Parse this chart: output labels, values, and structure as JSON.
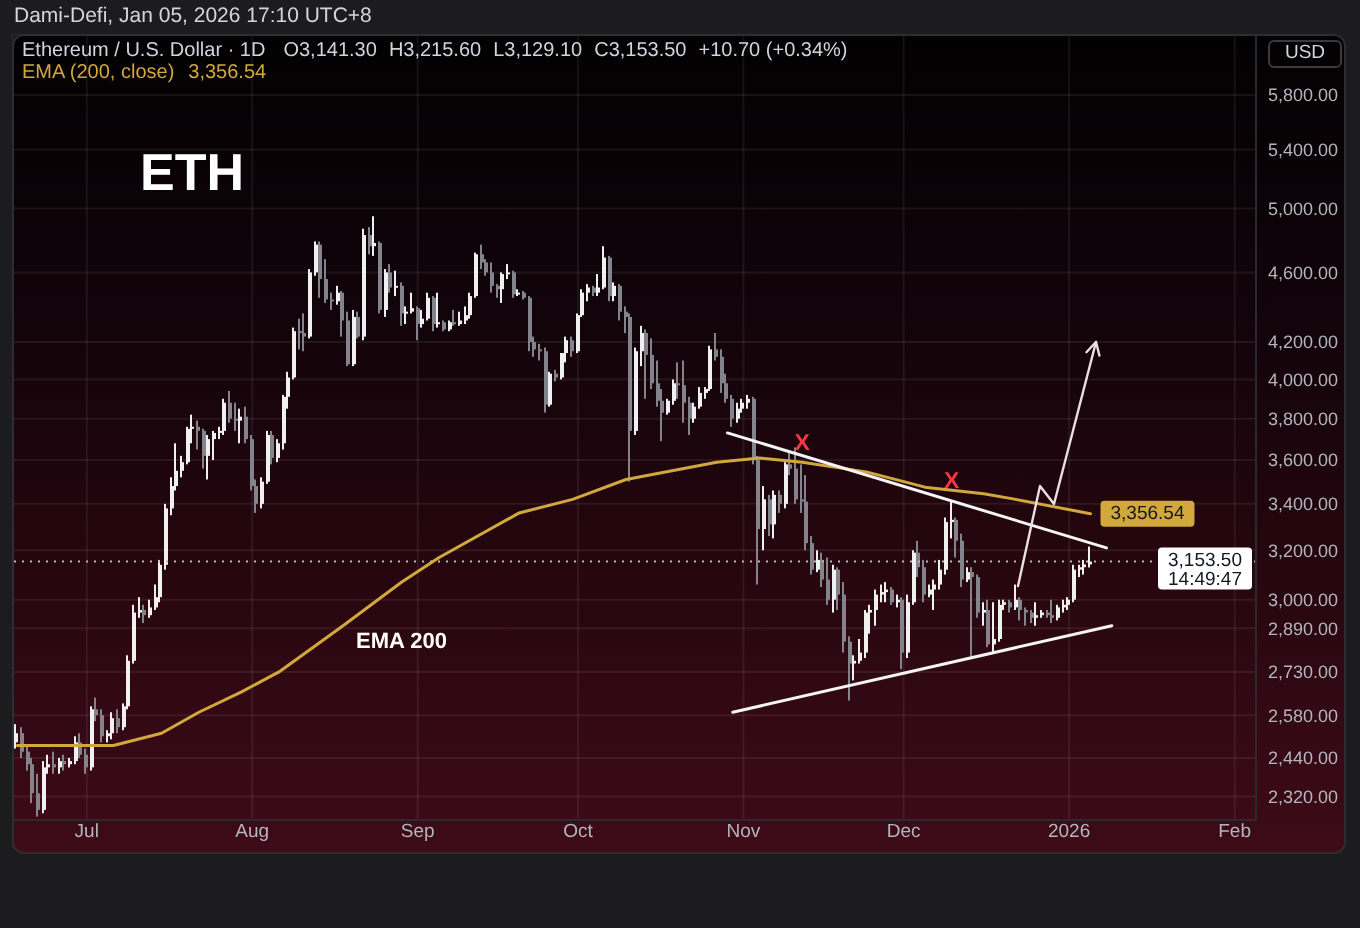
{
  "chart_data": {
    "type": "candlestick",
    "title": "ETH",
    "subtitle": "Ethereum / U.S. Dollar · 1D",
    "ylabel": "USD",
    "annotations": [
      "Dami-Defi, Jan 05, 2026 17:10 UTC+8",
      "O3,141.30",
      "H3,215.60",
      "L3,129.10",
      "C3,153.50",
      "+10.70 (+0.34%)",
      {
        "text": "X",
        "x": "2025-11-12",
        "y": 3580
      },
      {
        "text": "X",
        "x": "2025-12-10",
        "y": 3410
      },
      "EMA 200",
      "14:49:47"
    ],
    "x": [
      "2025-06-18",
      "2025-06-19",
      "2025-06-20",
      "2025-06-21",
      "2025-06-22",
      "2025-06-23",
      "2025-06-24",
      "2025-06-25",
      "2025-06-26",
      "2025-06-27",
      "2025-06-28",
      "2025-06-29",
      "2025-06-30",
      "2025-07-01",
      "2025-07-02",
      "2025-07-03",
      "2025-07-04",
      "2025-07-05",
      "2025-07-06",
      "2025-07-07",
      "2025-07-08",
      "2025-07-09",
      "2025-07-10",
      "2025-07-11",
      "2025-07-12",
      "2025-07-13",
      "2025-07-14",
      "2025-07-15",
      "2025-07-16",
      "2025-07-17",
      "2025-07-18",
      "2025-07-19",
      "2025-07-20",
      "2025-07-21",
      "2025-07-22",
      "2025-07-23",
      "2025-07-24",
      "2025-07-25",
      "2025-07-26",
      "2025-07-27",
      "2025-07-28",
      "2025-07-29",
      "2025-07-30",
      "2025-07-31",
      "2025-08-01",
      "2025-08-02",
      "2025-08-03",
      "2025-08-04",
      "2025-08-05",
      "2025-08-06",
      "2025-08-07",
      "2025-08-08",
      "2025-08-09",
      "2025-08-10",
      "2025-08-11",
      "2025-08-12",
      "2025-08-13",
      "2025-08-14",
      "2025-08-15",
      "2025-08-16",
      "2025-08-17",
      "2025-08-18",
      "2025-08-19",
      "2025-08-20",
      "2025-08-21",
      "2025-08-22",
      "2025-08-23",
      "2025-08-24",
      "2025-08-25",
      "2025-08-26",
      "2025-08-27",
      "2025-08-28",
      "2025-08-29",
      "2025-08-30",
      "2025-08-31",
      "2025-09-01",
      "2025-09-02",
      "2025-09-03",
      "2025-09-04",
      "2025-09-05",
      "2025-09-06",
      "2025-09-07",
      "2025-09-08",
      "2025-09-09",
      "2025-09-10",
      "2025-09-11",
      "2025-09-12",
      "2025-09-13",
      "2025-09-14",
      "2025-09-15",
      "2025-09-16",
      "2025-09-17",
      "2025-09-18",
      "2025-09-19",
      "2025-09-20",
      "2025-09-21",
      "2025-09-22",
      "2025-09-23",
      "2025-09-24",
      "2025-09-25",
      "2025-09-26",
      "2025-09-27",
      "2025-09-28",
      "2025-09-29",
      "2025-09-30",
      "2025-10-01",
      "2025-10-02",
      "2025-10-03",
      "2025-10-04",
      "2025-10-05",
      "2025-10-06",
      "2025-10-07",
      "2025-10-08",
      "2025-10-09",
      "2025-10-10",
      "2025-10-11",
      "2025-10-12",
      "2025-10-13",
      "2025-10-14",
      "2025-10-15",
      "2025-10-16",
      "2025-10-17",
      "2025-10-18",
      "2025-10-19",
      "2025-10-20",
      "2025-10-21",
      "2025-10-22",
      "2025-10-23",
      "2025-10-24",
      "2025-10-25",
      "2025-10-26",
      "2025-10-27",
      "2025-10-28",
      "2025-10-29",
      "2025-10-30",
      "2025-10-31",
      "2025-11-01",
      "2025-11-02",
      "2025-11-03",
      "2025-11-04",
      "2025-11-05",
      "2025-11-06",
      "2025-11-07",
      "2025-11-08",
      "2025-11-09",
      "2025-11-10",
      "2025-11-11",
      "2025-11-12",
      "2025-11-13",
      "2025-11-14",
      "2025-11-15",
      "2025-11-16",
      "2025-11-17",
      "2025-11-18",
      "2025-11-19",
      "2025-11-20",
      "2025-11-21",
      "2025-11-22",
      "2025-11-23",
      "2025-11-24",
      "2025-11-25",
      "2025-11-26",
      "2025-11-27",
      "2025-11-28",
      "2025-11-29",
      "2025-11-30",
      "2025-12-01",
      "2025-12-02",
      "2025-12-03",
      "2025-12-04",
      "2025-12-05",
      "2025-12-06",
      "2025-12-07",
      "2025-12-08",
      "2025-12-09",
      "2025-12-10",
      "2025-12-11",
      "2025-12-12",
      "2025-12-13",
      "2025-12-14",
      "2025-12-15",
      "2025-12-16",
      "2025-12-17",
      "2025-12-18",
      "2025-12-19",
      "2025-12-20",
      "2025-12-21",
      "2025-12-22",
      "2025-12-23",
      "2025-12-24",
      "2025-12-25",
      "2025-12-26",
      "2025-12-27",
      "2025-12-28",
      "2025-12-29",
      "2025-12-30",
      "2025-12-31",
      "2026-01-01",
      "2026-01-02",
      "2026-01-03",
      "2026-01-04",
      "2026-01-05"
    ],
    "ohlc": [
      [
        2490,
        2550,
        2470,
        2520
      ],
      [
        2520,
        2540,
        2440,
        2460
      ],
      [
        2460,
        2480,
        2400,
        2420
      ],
      [
        2420,
        2440,
        2300,
        2330
      ],
      [
        2330,
        2390,
        2260,
        2280
      ],
      [
        2280,
        2430,
        2270,
        2410
      ],
      [
        2410,
        2450,
        2390,
        2420
      ],
      [
        2420,
        2460,
        2390,
        2410
      ],
      [
        2410,
        2440,
        2390,
        2430
      ],
      [
        2430,
        2450,
        2400,
        2420
      ],
      [
        2420,
        2440,
        2410,
        2430
      ],
      [
        2430,
        2510,
        2420,
        2490
      ],
      [
        2490,
        2520,
        2440,
        2450
      ],
      [
        2450,
        2470,
        2390,
        2410
      ],
      [
        2410,
        2610,
        2400,
        2600
      ],
      [
        2600,
        2640,
        2560,
        2580
      ],
      [
        2580,
        2600,
        2490,
        2510
      ],
      [
        2510,
        2530,
        2490,
        2520
      ],
      [
        2520,
        2590,
        2500,
        2570
      ],
      [
        2570,
        2600,
        2520,
        2540
      ],
      [
        2540,
        2620,
        2530,
        2610
      ],
      [
        2610,
        2790,
        2600,
        2770
      ],
      [
        2770,
        2980,
        2760,
        2950
      ],
      [
        2950,
        3010,
        2930,
        2960
      ],
      [
        2960,
        2980,
        2910,
        2940
      ],
      [
        2940,
        3000,
        2930,
        2970
      ],
      [
        2970,
        3060,
        2960,
        3010
      ],
      [
        3010,
        3160,
        2990,
        3140
      ],
      [
        3140,
        3400,
        3120,
        3380
      ],
      [
        3380,
        3520,
        3350,
        3480
      ],
      [
        3480,
        3680,
        3460,
        3550
      ],
      [
        3550,
        3620,
        3520,
        3590
      ],
      [
        3590,
        3760,
        3580,
        3750
      ],
      [
        3750,
        3820,
        3680,
        3760
      ],
      [
        3760,
        3790,
        3650,
        3740
      ],
      [
        3740,
        3750,
        3560,
        3620
      ],
      [
        3620,
        3720,
        3510,
        3700
      ],
      [
        3700,
        3740,
        3600,
        3730
      ],
      [
        3730,
        3760,
        3700,
        3740
      ],
      [
        3740,
        3900,
        3720,
        3880
      ],
      [
        3880,
        3940,
        3780,
        3800
      ],
      [
        3800,
        3880,
        3740,
        3790
      ],
      [
        3790,
        3850,
        3680,
        3810
      ],
      [
        3810,
        3860,
        3680,
        3700
      ],
      [
        3700,
        3720,
        3460,
        3480
      ],
      [
        3480,
        3510,
        3360,
        3400
      ],
      [
        3400,
        3520,
        3380,
        3500
      ],
      [
        3500,
        3740,
        3490,
        3720
      ],
      [
        3720,
        3740,
        3580,
        3610
      ],
      [
        3610,
        3700,
        3590,
        3680
      ],
      [
        3680,
        3920,
        3650,
        3910
      ],
      [
        3910,
        4040,
        3850,
        4010
      ],
      [
        4010,
        4280,
        4000,
        4260
      ],
      [
        4260,
        4330,
        4160,
        4250
      ],
      [
        4250,
        4360,
        4150,
        4230
      ],
      [
        4230,
        4620,
        4220,
        4600
      ],
      [
        4600,
        4790,
        4580,
        4770
      ],
      [
        4770,
        4790,
        4450,
        4560
      ],
      [
        4560,
        4680,
        4420,
        4440
      ],
      [
        4440,
        4480,
        4380,
        4430
      ],
      [
        4430,
        4520,
        4410,
        4480
      ],
      [
        4480,
        4490,
        4230,
        4320
      ],
      [
        4320,
        4370,
        4070,
        4080
      ],
      [
        4080,
        4380,
        4070,
        4340
      ],
      [
        4340,
        4370,
        4220,
        4230
      ],
      [
        4230,
        4870,
        4210,
        4830
      ],
      [
        4830,
        4880,
        4710,
        4760
      ],
      [
        4760,
        4950,
        4700,
        4780
      ],
      [
        4780,
        4790,
        4360,
        4380
      ],
      [
        4380,
        4620,
        4340,
        4600
      ],
      [
        4600,
        4650,
        4480,
        4510
      ],
      [
        4510,
        4610,
        4460,
        4520
      ],
      [
        4520,
        4540,
        4290,
        4360
      ],
      [
        4360,
        4400,
        4300,
        4370
      ],
      [
        4370,
        4480,
        4360,
        4390
      ],
      [
        4390,
        4400,
        4210,
        4300
      ],
      [
        4300,
        4380,
        4280,
        4330
      ],
      [
        4330,
        4480,
        4320,
        4450
      ],
      [
        4450,
        4460,
        4260,
        4300
      ],
      [
        4300,
        4480,
        4280,
        4310
      ],
      [
        4310,
        4320,
        4260,
        4270
      ],
      [
        4270,
        4320,
        4260,
        4310
      ],
      [
        4310,
        4380,
        4290,
        4300
      ],
      [
        4300,
        4370,
        4290,
        4320
      ],
      [
        4320,
        4400,
        4300,
        4350
      ],
      [
        4350,
        4480,
        4330,
        4460
      ],
      [
        4460,
        4720,
        4450,
        4710
      ],
      [
        4710,
        4770,
        4620,
        4660
      ],
      [
        4660,
        4680,
        4580,
        4600
      ],
      [
        4600,
        4660,
        4480,
        4520
      ],
      [
        4520,
        4530,
        4450,
        4500
      ],
      [
        4500,
        4600,
        4420,
        4590
      ],
      [
        4590,
        4650,
        4560,
        4600
      ],
      [
        4600,
        4610,
        4450,
        4470
      ],
      [
        4470,
        4500,
        4460,
        4480
      ],
      [
        4480,
        4490,
        4440,
        4450
      ],
      [
        4450,
        4460,
        4150,
        4200
      ],
      [
        4200,
        4230,
        4120,
        4160
      ],
      [
        4160,
        4190,
        4100,
        4150
      ],
      [
        4150,
        4170,
        3830,
        3870
      ],
      [
        3870,
        4040,
        3860,
        4030
      ],
      [
        4030,
        4050,
        3990,
        4010
      ],
      [
        4010,
        4140,
        4000,
        4140
      ],
      [
        4140,
        4230,
        4090,
        4210
      ],
      [
        4210,
        4230,
        4120,
        4150
      ],
      [
        4150,
        4360,
        4140,
        4350
      ],
      [
        4350,
        4500,
        4340,
        4480
      ],
      [
        4480,
        4530,
        4430,
        4510
      ],
      [
        4510,
        4520,
        4460,
        4480
      ],
      [
        4480,
        4590,
        4460,
        4510
      ],
      [
        4510,
        4760,
        4500,
        4690
      ],
      [
        4690,
        4700,
        4430,
        4460
      ],
      [
        4460,
        4540,
        4430,
        4520
      ],
      [
        4520,
        4530,
        4320,
        4370
      ],
      [
        4370,
        4400,
        4250,
        4340
      ],
      [
        4340,
        4360,
        3500,
        3740
      ],
      [
        3740,
        4170,
        3720,
        4150
      ],
      [
        4150,
        4290,
        4070,
        4250
      ],
      [
        4250,
        4270,
        3900,
        4130
      ],
      [
        4130,
        4220,
        3950,
        3980
      ],
      [
        3980,
        4100,
        3860,
        3890
      ],
      [
        3890,
        3950,
        3690,
        3830
      ],
      [
        3830,
        3900,
        3820,
        3890
      ],
      [
        3890,
        4000,
        3870,
        3980
      ],
      [
        3980,
        4090,
        3900,
        3970
      ],
      [
        3970,
        4100,
        3780,
        3880
      ],
      [
        3880,
        3910,
        3720,
        3800
      ],
      [
        3800,
        3880,
        3780,
        3860
      ],
      [
        3860,
        3960,
        3850,
        3930
      ],
      [
        3930,
        3960,
        3900,
        3950
      ],
      [
        3950,
        4180,
        3940,
        4160
      ],
      [
        4160,
        4250,
        4100,
        4120
      ],
      [
        4120,
        4160,
        3930,
        3980
      ],
      [
        3980,
        4030,
        3880,
        3900
      ],
      [
        3900,
        3920,
        3760,
        3800
      ],
      [
        3800,
        3880,
        3780,
        3850
      ],
      [
        3850,
        3900,
        3830,
        3880
      ],
      [
        3880,
        3920,
        3850,
        3900
      ],
      [
        3900,
        3910,
        3580,
        3600
      ],
      [
        3600,
        3620,
        3060,
        3290
      ],
      [
        3290,
        3480,
        3200,
        3420
      ],
      [
        3420,
        3440,
        3260,
        3310
      ],
      [
        3310,
        3460,
        3250,
        3440
      ],
      [
        3440,
        3460,
        3360,
        3400
      ],
      [
        3400,
        3590,
        3380,
        3580
      ],
      [
        3580,
        3640,
        3530,
        3560
      ],
      [
        3560,
        3660,
        3400,
        3420
      ],
      [
        3420,
        3580,
        3360,
        3410
      ],
      [
        3410,
        3530,
        3200,
        3230
      ],
      [
        3230,
        3260,
        3100,
        3120
      ],
      [
        3120,
        3200,
        3110,
        3160
      ],
      [
        3160,
        3190,
        3050,
        3080
      ],
      [
        3080,
        3170,
        2980,
        3000
      ],
      [
        3000,
        3140,
        2950,
        3120
      ],
      [
        3120,
        3130,
        2960,
        3020
      ],
      [
        3020,
        3070,
        2800,
        2840
      ],
      [
        2840,
        2860,
        2630,
        2760
      ],
      [
        2760,
        2790,
        2700,
        2770
      ],
      [
        2770,
        2850,
        2760,
        2800
      ],
      [
        2800,
        2960,
        2780,
        2950
      ],
      [
        2950,
        2980,
        2870,
        2960
      ],
      [
        2960,
        3040,
        2900,
        3020
      ],
      [
        3020,
        3060,
        2990,
        3030
      ],
      [
        3030,
        3070,
        2990,
        3040
      ],
      [
        3040,
        3050,
        2980,
        2990
      ],
      [
        2990,
        3020,
        2970,
        3000
      ],
      [
        3000,
        3010,
        2740,
        2800
      ],
      [
        2800,
        3020,
        2780,
        2990
      ],
      [
        2990,
        3200,
        2980,
        3190
      ],
      [
        3190,
        3240,
        3090,
        3130
      ],
      [
        3130,
        3160,
        2990,
        3020
      ],
      [
        3020,
        3060,
        3010,
        3040
      ],
      [
        3040,
        3080,
        2960,
        3060
      ],
      [
        3060,
        3160,
        3040,
        3120
      ],
      [
        3120,
        3340,
        3100,
        3320
      ],
      [
        3320,
        3410,
        3250,
        3330
      ],
      [
        3330,
        3340,
        3170,
        3240
      ],
      [
        3240,
        3270,
        3050,
        3080
      ],
      [
        3080,
        3130,
        3070,
        3110
      ],
      [
        3110,
        3130,
        2780,
        3090
      ],
      [
        3090,
        3100,
        2930,
        2950
      ],
      [
        2950,
        2990,
        2900,
        2960
      ],
      [
        2960,
        3000,
        2820,
        2830
      ],
      [
        2830,
        2990,
        2800,
        2850
      ],
      [
        2850,
        3000,
        2840,
        2980
      ],
      [
        2980,
        3000,
        2960,
        2990
      ],
      [
        2990,
        3000,
        2950,
        2970
      ],
      [
        2970,
        3060,
        2960,
        3000
      ],
      [
        3000,
        3010,
        2920,
        2960
      ],
      [
        2960,
        2970,
        2900,
        2950
      ],
      [
        2950,
        2960,
        2910,
        2930
      ],
      [
        2930,
        2990,
        2900,
        2940
      ],
      [
        2940,
        2960,
        2930,
        2950
      ],
      [
        2950,
        2960,
        2930,
        2940
      ],
      [
        2940,
        3000,
        2910,
        2930
      ],
      [
        2930,
        2980,
        2920,
        2970
      ],
      [
        2970,
        3000,
        2950,
        2980
      ],
      [
        2980,
        3010,
        2960,
        3000
      ],
      [
        3000,
        3140,
        2990,
        3120
      ],
      [
        3120,
        3140,
        3090,
        3130
      ],
      [
        3130,
        3160,
        3100,
        3141.3
      ],
      [
        3141.3,
        3215.6,
        3129.1,
        3153.5
      ]
    ],
    "colors": [
      "#f0f0f0",
      "#83838b",
      "#83838b",
      "#83838b",
      "#83838b",
      "#f0f0f0",
      "#f0f0f0",
      "#83838b",
      "#f0f0f0",
      "#83838b",
      "#f0f0f0",
      "#f0f0f0",
      "#83838b",
      "#83838b",
      "#f0f0f0",
      "#83838b",
      "#83838b",
      "#f0f0f0",
      "#f0f0f0",
      "#83838b",
      "#f0f0f0",
      "#f0f0f0",
      "#f0f0f0",
      "#f0f0f0",
      "#83838b",
      "#f0f0f0",
      "#f0f0f0",
      "#f0f0f0",
      "#f0f0f0",
      "#f0f0f0",
      "#f0f0f0",
      "#f0f0f0",
      "#f0f0f0",
      "#f0f0f0",
      "#83838b",
      "#83838b",
      "#f0f0f0",
      "#f0f0f0",
      "#f0f0f0",
      "#f0f0f0",
      "#83838b",
      "#83838b",
      "#f0f0f0",
      "#83838b",
      "#83838b",
      "#83838b",
      "#f0f0f0",
      "#f0f0f0",
      "#83838b",
      "#f0f0f0",
      "#f0f0f0",
      "#f0f0f0",
      "#f0f0f0",
      "#83838b",
      "#83838b",
      "#f0f0f0",
      "#f0f0f0",
      "#83838b",
      "#83838b",
      "#83838b",
      "#f0f0f0",
      "#83838b",
      "#83838b",
      "#f0f0f0",
      "#83838b",
      "#f0f0f0",
      "#83838b",
      "#f0f0f0",
      "#83838b",
      "#f0f0f0",
      "#83838b",
      "#f0f0f0",
      "#83838b",
      "#f0f0f0",
      "#f0f0f0",
      "#83838b",
      "#f0f0f0",
      "#f0f0f0",
      "#83838b",
      "#f0f0f0",
      "#83838b",
      "#f0f0f0",
      "#83838b",
      "#f0f0f0",
      "#f0f0f0",
      "#f0f0f0",
      "#f0f0f0",
      "#83838b",
      "#83838b",
      "#83838b",
      "#83838b",
      "#f0f0f0",
      "#f0f0f0",
      "#83838b",
      "#f0f0f0",
      "#83838b",
      "#83838b",
      "#83838b",
      "#83838b",
      "#83838b",
      "#f0f0f0",
      "#83838b",
      "#f0f0f0",
      "#f0f0f0",
      "#83838b",
      "#f0f0f0",
      "#f0f0f0",
      "#f0f0f0",
      "#83838b",
      "#f0f0f0",
      "#f0f0f0",
      "#83838b",
      "#f0f0f0",
      "#83838b",
      "#83838b",
      "#83838b",
      "#f0f0f0",
      "#f0f0f0",
      "#83838b",
      "#83838b",
      "#83838b",
      "#83838b",
      "#f0f0f0",
      "#f0f0f0",
      "#83838b",
      "#83838b",
      "#83838b",
      "#f0f0f0",
      "#f0f0f0",
      "#f0f0f0",
      "#f0f0f0",
      "#83838b",
      "#83838b",
      "#83838b",
      "#83838b",
      "#f0f0f0",
      "#f0f0f0",
      "#f0f0f0",
      "#83838b",
      "#83838b",
      "#f0f0f0",
      "#83838b",
      "#f0f0f0",
      "#83838b",
      "#f0f0f0",
      "#83838b",
      "#83838b",
      "#83838b",
      "#83838b",
      "#83838b",
      "#f0f0f0",
      "#83838b",
      "#83838b",
      "#f0f0f0",
      "#83838b",
      "#83838b",
      "#83838b",
      "#f0f0f0",
      "#f0f0f0",
      "#f0f0f0",
      "#f0f0f0",
      "#f0f0f0",
      "#f0f0f0",
      "#f0f0f0",
      "#83838b",
      "#f0f0f0",
      "#83838b",
      "#f0f0f0",
      "#f0f0f0",
      "#83838b",
      "#83838b",
      "#f0f0f0",
      "#f0f0f0",
      "#f0f0f0",
      "#f0f0f0",
      "#f0f0f0",
      "#83838b",
      "#83838b",
      "#f0f0f0",
      "#83838b",
      "#83838b",
      "#f0f0f0",
      "#83838b",
      "#f0f0f0",
      "#f0f0f0",
      "#f0f0f0",
      "#83838b",
      "#f0f0f0",
      "#83838b",
      "#83838b",
      "#83838b",
      "#f0f0f0",
      "#f0f0f0",
      "#83838b",
      "#83838b",
      "#f0f0f0",
      "#f0f0f0",
      "#f0f0f0",
      "#f0f0f0",
      "#f0f0f0",
      "#f0f0f0",
      "#f0f0f0"
    ],
    "series": [
      {
        "name": "EMA (200, close)",
        "type": "line",
        "color": "#d2a83c",
        "x": [
          "2025-06-18",
          "2025-07-06",
          "2025-07-15",
          "2025-07-22",
          "2025-07-30",
          "2025-08-06",
          "2025-08-18",
          "2025-08-29",
          "2025-09-05",
          "2025-09-20",
          "2025-09-30",
          "2025-10-10",
          "2025-10-27",
          "2025-11-04",
          "2025-11-12",
          "2025-11-24",
          "2025-12-05",
          "2025-12-16",
          "2025-12-22",
          "2026-01-05"
        ],
        "values": [
          2480,
          2480,
          2520,
          2590,
          2660,
          2730,
          2900,
          3070,
          3170,
          3360,
          3420,
          3510,
          3590,
          3610,
          3590,
          3545,
          3475,
          3445,
          3420,
          3356.54
        ],
        "value_labels": [
          null,
          null,
          null,
          null,
          null,
          null,
          null,
          null,
          null,
          null,
          null,
          null,
          null,
          null,
          null,
          null,
          null,
          null,
          null,
          "3,356.54"
        ]
      },
      {
        "type": "line",
        "color": "#f4f4f4",
        "x": [
          "2025-10-29",
          "2026-01-08"
        ],
        "values": [
          3730,
          3210
        ]
      },
      {
        "type": "line",
        "color": "#f4f4f4",
        "x": [
          "2025-10-30",
          "2026-01-09"
        ],
        "values": [
          2590,
          2900
        ]
      }
    ],
    "xlim": [
      "2025-06-17",
      "2026-02-05"
    ],
    "xticks": [
      {
        "value": "2025-07-01",
        "label": "Jul"
      },
      {
        "value": "2025-08-01",
        "label": "Aug"
      },
      {
        "value": "2025-09-01",
        "label": "Sep"
      },
      {
        "value": "2025-10-01",
        "label": "Oct"
      },
      {
        "value": "2025-11-01",
        "label": "Nov"
      },
      {
        "value": "2025-12-01",
        "label": "Dec"
      },
      {
        "value": "2026-01-01",
        "label": "2026"
      },
      {
        "value": "2026-02-01",
        "label": "Feb"
      }
    ],
    "ylim": [
      2250,
      6280
    ],
    "yticks": [
      {
        "value": 5800,
        "label": "5,800.00"
      },
      {
        "value": 5400,
        "label": "5,400.00"
      },
      {
        "value": 5000,
        "label": "5,000.00"
      },
      {
        "value": 4600,
        "label": "4,600.00"
      },
      {
        "value": 4200,
        "label": "4,200.00"
      },
      {
        "value": 4000,
        "label": "4,000.00"
      },
      {
        "value": 3800,
        "label": "3,800.00"
      },
      {
        "value": 3600,
        "label": "3,600.00"
      },
      {
        "value": 3400,
        "label": "3,400.00"
      },
      {
        "value": 3200,
        "label": "3,200.00"
      },
      {
        "value": 3000,
        "label": "3,000.00"
      },
      {
        "value": 2890,
        "label": "2,890.00"
      },
      {
        "value": 2730,
        "label": "2,730.00"
      },
      {
        "value": 2580,
        "label": "2,580.00"
      },
      {
        "value": 2440,
        "label": "2,440.00"
      },
      {
        "value": 2320,
        "label": "2,320.00"
      }
    ],
    "log": true,
    "grid": true,
    "legend": "top left",
    "ref_lines": [
      {
        "axis": "y",
        "value": 3153.5,
        "label": "3,153.50",
        "color": "#b8b8b8",
        "line_style": "dotted"
      }
    ]
  }
}
